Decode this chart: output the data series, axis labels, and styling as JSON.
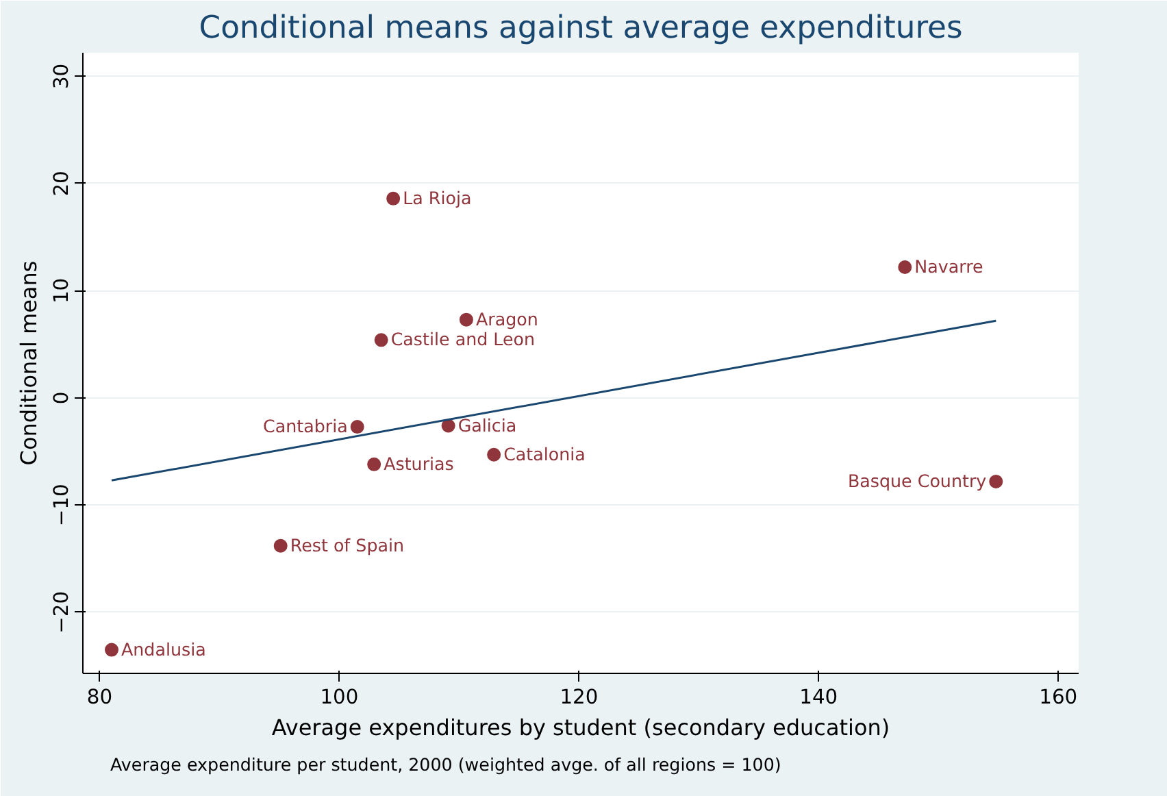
{
  "chart_data": {
    "type": "scatter",
    "title": "Conditional means against average expenditures",
    "xlabel": "Average expenditures by student (secondary education)",
    "ylabel": "Conditional means",
    "xlim": [
      78.6,
      161.7
    ],
    "ylim": [
      -25.7,
      32.2
    ],
    "xticks": [
      80,
      100,
      120,
      140,
      160
    ],
    "yticks": [
      -20,
      -10,
      0,
      10,
      20,
      30
    ],
    "grid": "y",
    "series": [
      {
        "color": "#90353b",
        "marker": "circle",
        "x": [
          104.5,
          147.2,
          110.6,
          103.5,
          101.5,
          109.1,
          112.9,
          102.9,
          154.8,
          95.1,
          81.0
        ],
        "values": [
          18.6,
          12.2,
          7.3,
          5.4,
          -2.7,
          -2.6,
          -5.3,
          -6.2,
          -7.8,
          -13.8,
          -23.5
        ]
      },
      {
        "type": "line",
        "color": "#1a476f",
        "x": [
          81.0,
          154.8
        ],
        "values": [
          -7.7,
          7.2
        ]
      }
    ],
    "annotations": [
      {
        "text": "La Rioja",
        "x": 104.5,
        "y": 18.6
      },
      {
        "text": "Navarre",
        "x": 147.2,
        "y": 12.2
      },
      {
        "text": "Aragon",
        "x": 110.6,
        "y": 7.3
      },
      {
        "text": "Castile and Leon",
        "x": 103.5,
        "y": 5.4
      },
      {
        "text": "Cantabria",
        "x": 101.5,
        "y": -2.7
      },
      {
        "text": "Galicia",
        "x": 109.1,
        "y": -2.6
      },
      {
        "text": "Catalonia",
        "x": 112.9,
        "y": -5.3
      },
      {
        "text": "Asturias",
        "x": 102.9,
        "y": -6.2
      },
      {
        "text": "Basque Country",
        "x": 154.8,
        "y": -7.8
      },
      {
        "text": "Rest of Spain",
        "x": 95.1,
        "y": -13.8
      },
      {
        "text": "Andalusia",
        "x": 81.0,
        "y": -23.5
      },
      "Average expenditure per student, 2000 (weighted avge. of all regions = 100)"
    ]
  }
}
